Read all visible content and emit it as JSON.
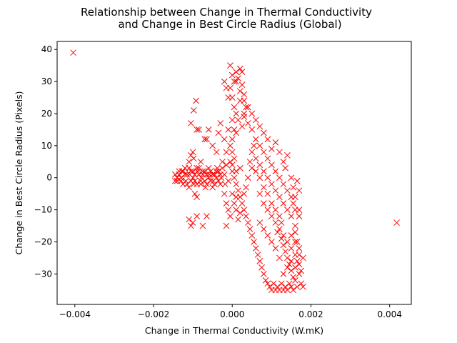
{
  "chart_data": {
    "type": "scatter",
    "title_lines": [
      "Relationship between Change in Thermal Conductivity",
      "and Change in Best Circle Radius (Global)"
    ],
    "xlabel": "Change in Thermal Conductivity (W.mK)",
    "ylabel": "Change in Best Circle Radius (Pixels)",
    "xlim": [
      -0.00445,
      0.00455
    ],
    "ylim": [
      -39.5,
      42.5
    ],
    "x_ticks": [
      -0.004,
      -0.002,
      0.0,
      0.002,
      0.004
    ],
    "x_tick_labels": [
      "−0.004",
      "−0.002",
      "0.000",
      "0.002",
      "0.004"
    ],
    "y_ticks": [
      -30,
      -20,
      -10,
      0,
      10,
      20,
      30,
      40
    ],
    "y_tick_labels": [
      "−30",
      "−20",
      "−10",
      "0",
      "10",
      "20",
      "30",
      "40"
    ],
    "grid": false,
    "marker": "x",
    "color": "#ff0000",
    "series": [
      {
        "points": [
          [
            -0.00404,
            39
          ],
          [
            0.00418,
            -14
          ],
          [
            -0.00145,
            1
          ],
          [
            -0.0014,
            -1
          ],
          [
            -0.00135,
            2
          ],
          [
            -0.0013,
            0
          ],
          [
            -0.00125,
            -2
          ],
          [
            -0.0012,
            3
          ],
          [
            -0.00115,
            1
          ],
          [
            -0.0011,
            -3
          ],
          [
            -0.00105,
            2
          ],
          [
            -0.001,
            0
          ],
          [
            -0.00095,
            -1
          ],
          [
            -0.0009,
            3
          ],
          [
            -0.00085,
            1
          ],
          [
            -0.0008,
            -2
          ],
          [
            -0.00075,
            2
          ],
          [
            -0.0007,
            -1
          ],
          [
            -0.00065,
            1
          ],
          [
            -0.0006,
            0
          ],
          [
            -0.00055,
            2
          ],
          [
            -0.0005,
            -3
          ],
          [
            -0.00045,
            1
          ],
          [
            -0.0004,
            0
          ],
          [
            -0.00035,
            2
          ],
          [
            -0.0003,
            -2
          ],
          [
            -0.00025,
            3
          ],
          [
            -0.0002,
            1
          ],
          [
            -0.00015,
            4
          ],
          [
            -0.0001,
            -1
          ],
          [
            -5e-05,
            5
          ],
          [
            0.0,
            2
          ],
          [
            -0.00128,
            2
          ],
          [
            -0.00118,
            -1
          ],
          [
            -0.00108,
            1
          ],
          [
            -0.00098,
            -2
          ],
          [
            -0.00088,
            2
          ],
          [
            -0.00078,
            0
          ],
          [
            -0.00068,
            -3
          ],
          [
            -0.00058,
            1
          ],
          [
            -0.00048,
            -1
          ],
          [
            -0.00038,
            3
          ],
          [
            -0.00028,
            0
          ],
          [
            -0.00018,
            -2
          ],
          [
            -0.001,
            8
          ],
          [
            -0.00098,
            6
          ],
          [
            -0.0011,
            5
          ],
          [
            -0.00105,
            7
          ],
          [
            -0.00095,
            -5
          ],
          [
            -0.0009,
            -6
          ],
          [
            -0.0011,
            -13
          ],
          [
            -0.00105,
            -15
          ],
          [
            -0.001,
            -14
          ],
          [
            -0.0009,
            -12
          ],
          [
            -0.00075,
            -15
          ],
          [
            -0.00065,
            -12
          ],
          [
            -0.00105,
            17
          ],
          [
            -0.00098,
            21
          ],
          [
            -0.00092,
            24
          ],
          [
            -0.0009,
            15
          ],
          [
            -0.00085,
            15
          ],
          [
            -0.0008,
            5
          ],
          [
            -0.0007,
            12
          ],
          [
            -0.00065,
            12
          ],
          [
            -0.0006,
            15
          ],
          [
            -0.0005,
            10
          ],
          [
            -0.00035,
            14
          ],
          [
            -0.00015,
            -15
          ],
          [
            -0.0002,
            12
          ],
          [
            -0.0003,
            17
          ],
          [
            -0.00025,
            5
          ],
          [
            -0.0004,
            8
          ],
          [
            -0.0002,
            30
          ],
          [
            -0.00015,
            28
          ],
          [
            -0.0001,
            25
          ],
          [
            -5e-05,
            35
          ],
          [
            0.0,
            32
          ],
          [
            5e-05,
            30
          ],
          [
            0.0001,
            33
          ],
          [
            0.00015,
            31
          ],
          [
            0.0002,
            34
          ],
          [
            0.00025,
            29
          ],
          [
            0.0003,
            26
          ],
          [
            0.00035,
            22
          ],
          [
            -5e-05,
            28
          ],
          [
            0.0,
            25
          ],
          [
            5e-05,
            22
          ],
          [
            0.0001,
            20
          ],
          [
            0.00015,
            18
          ],
          [
            0.0002,
            24
          ],
          [
            0.00025,
            16
          ],
          [
            0.0003,
            19
          ],
          [
            0.0,
            18
          ],
          [
            5e-05,
            15
          ],
          [
            0.0001,
            14
          ],
          [
            0.0,
            12
          ],
          [
            -5e-05,
            10
          ],
          [
            0.0,
            8
          ],
          [
            5e-05,
            6
          ],
          [
            0.0,
            4
          ],
          [
            0.0001,
            2
          ],
          [
            5e-05,
            0
          ],
          [
            0.0001,
            -2
          ],
          [
            0.00015,
            -4
          ],
          [
            0.0002,
            -6
          ],
          [
            0.00025,
            -8
          ],
          [
            0.0003,
            -10
          ],
          [
            0.0002,
            3
          ],
          [
            0.00035,
            -12
          ],
          [
            0.0004,
            -14
          ],
          [
            0.00045,
            -16
          ],
          [
            0.0005,
            -18
          ],
          [
            0.00055,
            -20
          ],
          [
            0.0006,
            -22
          ],
          [
            0.00065,
            -24
          ],
          [
            0.0007,
            -26
          ],
          [
            0.00075,
            -28
          ],
          [
            0.0008,
            -30
          ],
          [
            0.00085,
            -32
          ],
          [
            0.0009,
            -33
          ],
          [
            0.00095,
            -34
          ],
          [
            0.001,
            -35
          ],
          [
            0.00105,
            -33
          ],
          [
            0.0011,
            -35
          ],
          [
            0.00115,
            -34
          ],
          [
            0.0012,
            -35
          ],
          [
            0.00125,
            -33
          ],
          [
            0.0013,
            -35
          ],
          [
            0.00135,
            -34
          ],
          [
            0.0014,
            -35
          ],
          [
            0.00145,
            -33
          ],
          [
            0.0015,
            -34
          ],
          [
            0.00155,
            -35
          ],
          [
            0.0016,
            -32
          ],
          [
            0.00165,
            -34
          ],
          [
            0.0017,
            -30
          ],
          [
            0.00175,
            -33
          ],
          [
            0.0018,
            -34
          ],
          [
            0.0013,
            -30
          ],
          [
            0.0014,
            -28
          ],
          [
            0.0015,
            -26
          ],
          [
            0.0016,
            -24
          ],
          [
            0.0017,
            -22
          ],
          [
            0.00165,
            -20
          ],
          [
            0.0012,
            -25
          ],
          [
            0.0011,
            -22
          ],
          [
            0.001,
            -20
          ],
          [
            0.0009,
            -18
          ],
          [
            0.0008,
            -16
          ],
          [
            0.0007,
            -14
          ],
          [
            0.0015,
            -18
          ],
          [
            0.0016,
            -15
          ],
          [
            0.0017,
            -12
          ],
          [
            0.0016,
            -10
          ],
          [
            0.00155,
            -8
          ],
          [
            0.0015,
            -6
          ],
          [
            0.0014,
            -4
          ],
          [
            0.0013,
            -2
          ],
          [
            0.0012,
            0
          ],
          [
            0.0011,
            2
          ],
          [
            0.001,
            4
          ],
          [
            0.0009,
            6
          ],
          [
            0.0008,
            8
          ],
          [
            0.0007,
            10
          ],
          [
            0.0006,
            12
          ],
          [
            0.0005,
            15
          ],
          [
            0.0004,
            17
          ],
          [
            0.0003,
            20
          ],
          [
            0.0016,
            -17
          ],
          [
            0.0017,
            -10
          ],
          [
            0.0015,
            -12
          ],
          [
            0.0014,
            -10
          ],
          [
            0.0013,
            -8
          ],
          [
            0.0012,
            -6
          ],
          [
            0.0011,
            -4
          ],
          [
            0.001,
            -2
          ],
          [
            0.0009,
            0
          ],
          [
            0.0008,
            2
          ],
          [
            0.0007,
            4
          ],
          [
            0.0006,
            6
          ],
          [
            0.0005,
            3
          ],
          [
            0.0004,
            0
          ],
          [
            0.00035,
            -3
          ],
          [
            0.0003,
            -5
          ],
          [
            0.00045,
            5
          ],
          [
            0.0005,
            8
          ],
          [
            0.00055,
            10
          ],
          [
            0.0006,
            2
          ],
          [
            0.0007,
            -5
          ],
          [
            0.0008,
            -8
          ],
          [
            0.0009,
            -10
          ],
          [
            0.001,
            -12
          ],
          [
            0.0011,
            -14
          ],
          [
            0.00115,
            -17
          ],
          [
            0.0012,
            -16
          ],
          [
            0.00125,
            -19
          ],
          [
            0.0013,
            -21
          ],
          [
            0.00135,
            -23
          ],
          [
            0.0014,
            -25
          ],
          [
            0.00145,
            -27
          ],
          [
            0.0015,
            -29
          ],
          [
            0.00155,
            -31
          ],
          [
            0.0016,
            -28
          ],
          [
            0.00165,
            -26
          ],
          [
            0.0017,
            -27
          ],
          [
            0.0017,
            -24
          ],
          [
            0.0018,
            -25
          ],
          [
            0.00175,
            -29
          ],
          [
            0.0016,
            -20
          ],
          [
            0.0015,
            -22
          ],
          [
            0.0014,
            -20
          ],
          [
            0.0013,
            -18
          ],
          [
            0.00125,
            -14
          ],
          [
            0.0012,
            -12
          ],
          [
            0.0011,
            -10
          ],
          [
            0.001,
            -8
          ],
          [
            0.0009,
            -5
          ],
          [
            0.0008,
            -3
          ],
          [
            0.0007,
            0
          ],
          [
            0.0009,
            12
          ],
          [
            0.001,
            9
          ],
          [
            0.0011,
            11
          ],
          [
            0.0012,
            8
          ],
          [
            0.0013,
            5
          ],
          [
            0.00135,
            3
          ],
          [
            0.0014,
            7
          ],
          [
            0.0015,
            0
          ],
          [
            0.00155,
            -3
          ],
          [
            0.0016,
            -6
          ],
          [
            0.00165,
            -1
          ],
          [
            0.0017,
            -4
          ],
          [
            0.0008,
            14
          ],
          [
            0.0007,
            16
          ],
          [
            0.0006,
            18
          ],
          [
            0.0005,
            20
          ],
          [
            0.0004,
            22
          ],
          [
            0.0003,
            24
          ],
          [
            0.0002,
            27
          ],
          [
            0.0001,
            30
          ],
          [
            0.00025,
            33
          ],
          [
            -0.0001,
            15
          ],
          [
            -0.00015,
            8
          ],
          [
            -0.0002,
            -5
          ],
          [
            -0.00015,
            -8
          ],
          [
            -0.0001,
            -10
          ],
          [
            -5e-05,
            -12
          ],
          [
            0.0,
            -5
          ],
          [
            5e-05,
            -8
          ],
          [
            0.0001,
            -10
          ],
          [
            0.00015,
            -13
          ],
          [
            0.0002,
            -11
          ],
          [
            0.0001,
            -6
          ],
          [
            -0.0003,
            1
          ],
          [
            -0.00035,
            -1
          ],
          [
            -0.0004,
            2
          ],
          [
            -0.00045,
            -2
          ],
          [
            -0.0005,
            1
          ],
          [
            -0.00055,
            -1
          ],
          [
            -0.0006,
            3
          ],
          [
            -0.00065,
            -2
          ],
          [
            -0.0007,
            2
          ],
          [
            -0.00075,
            1
          ],
          [
            -0.0008,
            -1
          ],
          [
            -0.00085,
            3
          ],
          [
            -0.0009,
            -2
          ],
          [
            -0.00095,
            1
          ],
          [
            -0.001,
            2
          ],
          [
            -0.00105,
            -1
          ],
          [
            -0.0011,
            3
          ],
          [
            -0.00115,
            -2
          ],
          [
            -0.0012,
            1
          ],
          [
            -0.00125,
            2
          ],
          [
            -0.0013,
            -1
          ],
          [
            -0.00135,
            1
          ],
          [
            -0.0014,
            0
          ],
          [
            -0.00145,
            -1
          ]
        ]
      }
    ]
  }
}
